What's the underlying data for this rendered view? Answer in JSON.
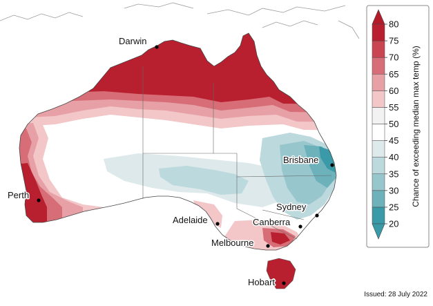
{
  "colorbar": {
    "title": "Chance of exceeding median max temp (%)",
    "ticks": [
      "20",
      "25",
      "30",
      "35",
      "40",
      "45",
      "50",
      "55",
      "60",
      "65",
      "70",
      "75",
      "80"
    ],
    "colors": [
      "#3a9aa8",
      "#6db1bb",
      "#97c6cd",
      "#bcd9dd",
      "#dde9eb",
      "#ffffff",
      "#f2f2f2",
      "#f3c6c8",
      "#e7a1a6",
      "#d76d77",
      "#c94552",
      "#b9202f"
    ],
    "cap_low": "#3a9aa8",
    "cap_high": "#b51a2a"
  },
  "cities": [
    {
      "name": "Darwin"
    },
    {
      "name": "Brisbane"
    },
    {
      "name": "Perth"
    },
    {
      "name": "Sydney"
    },
    {
      "name": "Adelaide"
    },
    {
      "name": "Canberra"
    },
    {
      "name": "Melbourne"
    },
    {
      "name": "Hobart"
    }
  ],
  "issued": "Issued: 28 July 2022"
}
